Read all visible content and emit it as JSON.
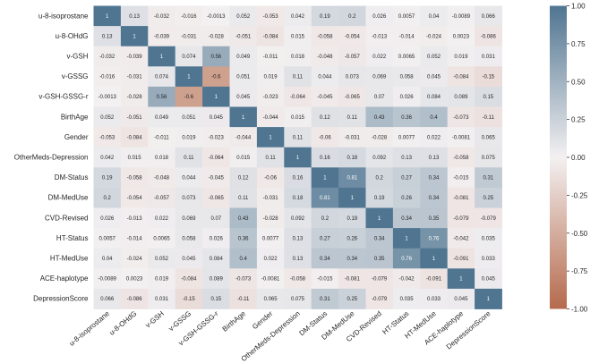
{
  "chart_data": {
    "type": "heatmap",
    "title": "",
    "xlabel": "",
    "ylabel": "",
    "variables": [
      "u-8-isoprostane",
      "u-8-OHdG",
      "v-GSH",
      "v-GSSG",
      "v-GSH-GSSG-r",
      "BirthAge",
      "Gender",
      "OtherMeds-Depression",
      "DM-Status",
      "DM-MedUse",
      "CVD-Revised",
      "HT-Status",
      "HT-MedUse",
      "ACE-haplotype",
      "DepressionScore"
    ],
    "values": [
      [
        "1",
        "0.13",
        "-0.032",
        "-0.016",
        "-0.0013",
        "0.052",
        "-0.053",
        "0.042",
        "0.19",
        "0.2",
        "0.026",
        "0.0057",
        "0.04",
        "-0.0089",
        "0.066"
      ],
      [
        "0.13",
        "1",
        "-0.039",
        "-0.031",
        "-0.028",
        "-0.051",
        "-0.084",
        "0.015",
        "-0.058",
        "-0.054",
        "-0.013",
        "-0.014",
        "-0.024",
        "0.0023",
        "-0.086"
      ],
      [
        "-0.032",
        "-0.039",
        "1",
        "0.074",
        "0.56",
        "0.049",
        "-0.011",
        "0.018",
        "-0.048",
        "-0.057",
        "0.022",
        "0.0065",
        "0.052",
        "0.019",
        "0.031"
      ],
      [
        "-0.016",
        "-0.031",
        "0.074",
        "1",
        "-0.6",
        "0.051",
        "0.019",
        "0.11",
        "0.044",
        "0.073",
        "0.069",
        "0.058",
        "0.045",
        "-0.084",
        "-0.15"
      ],
      [
        "-0.0013",
        "-0.028",
        "0.56",
        "-0.6",
        "1",
        "0.045",
        "-0.023",
        "-0.064",
        "-0.045",
        "-0.065",
        "0.07",
        "0.026",
        "0.084",
        "0.089",
        "0.15"
      ],
      [
        "0.052",
        "-0.051",
        "0.049",
        "0.051",
        "0.045",
        "1",
        "-0.044",
        "0.015",
        "0.12",
        "0.11",
        "0.43",
        "0.36",
        "0.4",
        "-0.073",
        "-0.11"
      ],
      [
        "-0.053",
        "-0.084",
        "-0.011",
        "0.019",
        "-0.023",
        "-0.044",
        "1",
        "0.11",
        "-0.06",
        "-0.031",
        "-0.028",
        "0.0077",
        "0.022",
        "-0.0081",
        "0.065"
      ],
      [
        "0.042",
        "0.015",
        "0.018",
        "0.11",
        "-0.064",
        "0.015",
        "0.11",
        "1",
        "0.16",
        "0.18",
        "0.092",
        "0.13",
        "0.13",
        "-0.058",
        "0.075"
      ],
      [
        "0.19",
        "-0.058",
        "-0.048",
        "0.044",
        "-0.045",
        "0.12",
        "-0.06",
        "0.16",
        "1",
        "0.81",
        "0.2",
        "0.27",
        "0.34",
        "-0.015",
        "0.31"
      ],
      [
        "0.2",
        "-0.054",
        "-0.057",
        "0.073",
        "-0.065",
        "0.11",
        "-0.031",
        "0.18",
        "0.81",
        "1",
        "0.19",
        "0.26",
        "0.34",
        "-0.081",
        "0.25"
      ],
      [
        "0.026",
        "-0.013",
        "0.022",
        "0.069",
        "0.07",
        "0.43",
        "-0.028",
        "0.092",
        "0.2",
        "0.19",
        "1",
        "0.34",
        "0.35",
        "-0.079",
        "-0.079"
      ],
      [
        "0.0057",
        "-0.014",
        "0.0065",
        "0.058",
        "0.026",
        "0.36",
        "0.0077",
        "0.13",
        "0.27",
        "0.26",
        "0.34",
        "1",
        "0.76",
        "-0.042",
        "0.035"
      ],
      [
        "0.04",
        "-0.024",
        "0.052",
        "0.045",
        "0.084",
        "0.4",
        "0.022",
        "0.13",
        "0.34",
        "0.34",
        "0.35",
        "0.76",
        "1",
        "-0.091",
        "0.033"
      ],
      [
        "-0.0089",
        "0.0023",
        "0.019",
        "-0.084",
        "0.089",
        "-0.073",
        "-0.0081",
        "-0.058",
        "-0.015",
        "-0.081",
        "-0.079",
        "-0.042",
        "-0.091",
        "1",
        "0.045"
      ],
      [
        "0.066",
        "-0.086",
        "0.031",
        "-0.15",
        "0.15",
        "-0.11",
        "0.065",
        "0.075",
        "0.31",
        "0.25",
        "-0.079",
        "0.035",
        "0.033",
        "0.045",
        "1"
      ]
    ],
    "colorbar": {
      "min": -1.0,
      "max": 1.0,
      "ticks": [
        "-1.00",
        "-0.75",
        "-0.50",
        "-0.25",
        "0.00",
        "0.25",
        "0.50",
        "0.75",
        "1.00"
      ],
      "low_color": "#b56a4c",
      "mid_color": "#f3f0f1",
      "high_color": "#4f7591"
    }
  }
}
